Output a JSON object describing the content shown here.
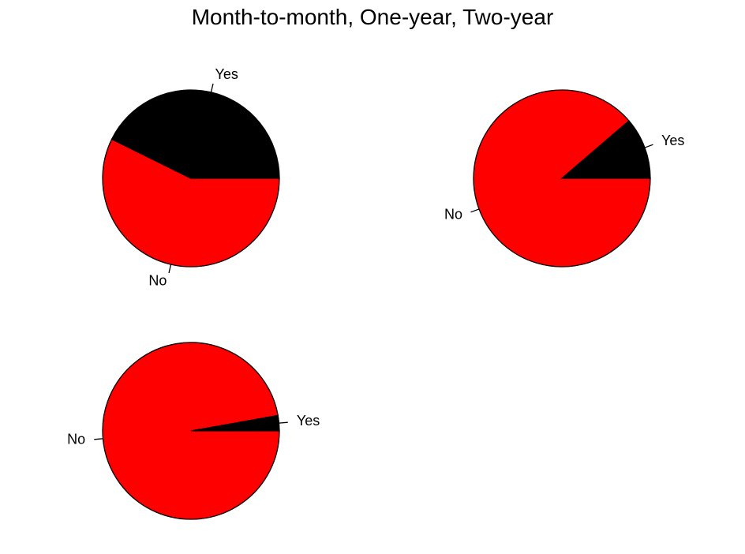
{
  "chart_data": {
    "type": "pie",
    "title": "Month-to-month, One-year, Two-year",
    "pies": [
      {
        "slices": [
          {
            "label": "Yes",
            "value": 0.427,
            "color": "#000000"
          },
          {
            "label": "No",
            "value": 0.573,
            "color": "#ff0000"
          }
        ]
      },
      {
        "slices": [
          {
            "label": "Yes",
            "value": 0.113,
            "color": "#000000"
          },
          {
            "label": "No",
            "value": 0.887,
            "color": "#ff0000"
          }
        ]
      },
      {
        "slices": [
          {
            "label": "Yes",
            "value": 0.028,
            "color": "#000000"
          },
          {
            "label": "No",
            "value": 0.972,
            "color": "#ff0000"
          }
        ]
      }
    ]
  }
}
